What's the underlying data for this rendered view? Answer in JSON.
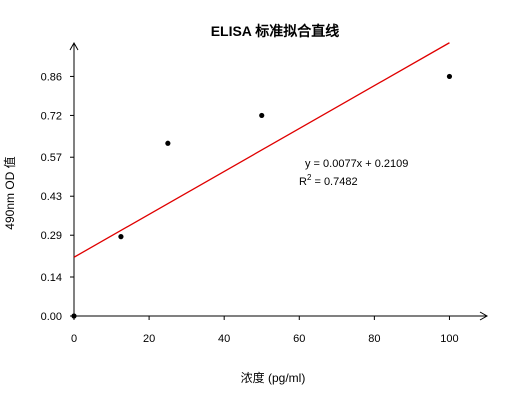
{
  "chart_data": {
    "type": "scatter",
    "title": "ELISA 标准拟合直线",
    "xlabel": "浓度 (pg/ml)",
    "ylabel": "490nm OD 值",
    "xlim": [
      0,
      110
    ],
    "ylim": [
      0,
      0.98
    ],
    "x_ticks": [
      0,
      20,
      40,
      60,
      80,
      100
    ],
    "y_ticks": [
      0.0,
      0.14,
      0.29,
      0.43,
      0.57,
      0.72,
      0.86
    ],
    "y_tick_labels": [
      "0.00",
      "0.14",
      "0.29",
      "0.43",
      "0.57",
      "0.72",
      "0.86"
    ],
    "grid": false,
    "points": [
      {
        "x": 0,
        "y": 0.0
      },
      {
        "x": 12.5,
        "y": 0.285
      },
      {
        "x": 25,
        "y": 0.62
      },
      {
        "x": 50,
        "y": 0.72
      },
      {
        "x": 100,
        "y": 0.86
      }
    ],
    "fit": {
      "slope": 0.0077,
      "intercept": 0.2109,
      "x_range": [
        0,
        100
      ],
      "color": "#e00000",
      "equation": "y = 0.0077x + 0.2109",
      "r2_prefix": "R",
      "r2_sup": "2",
      "r2_value": " = 0.7482"
    },
    "point_color": "#000000",
    "axis_color": "#000000"
  }
}
